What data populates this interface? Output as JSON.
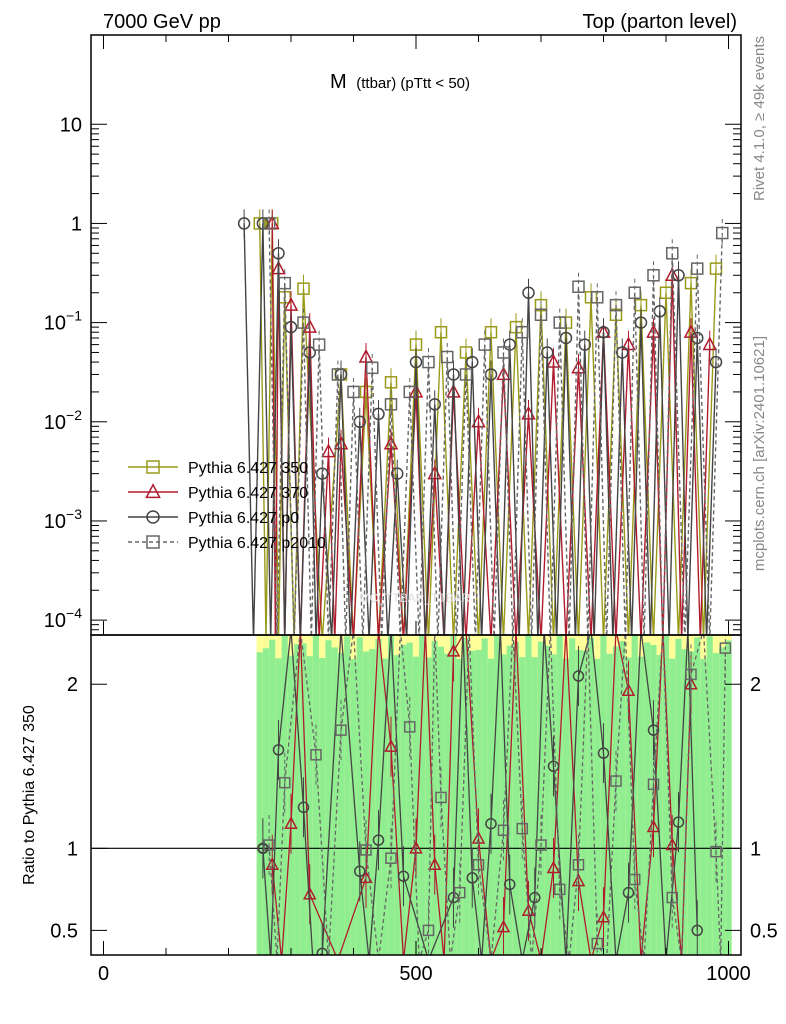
{
  "header": {
    "left": "7000 GeV pp",
    "right": "Top (parton level)"
  },
  "side_text": {
    "rivet": "Rivet 4.1.0, ≥ 49k events",
    "site": "mcplots.cern.ch [arXiv:2401.10621]"
  },
  "title": {
    "main": "M",
    "sub": "(ttbar) (pTtt < 50)"
  },
  "ratio_ylabel": "Ratio to Pythia 6.427 350",
  "watermark": "MC_TTBAR_TTBAR",
  "colors": {
    "y350": "#9a9a1a",
    "r370": "#b01c2e",
    "p0": "#444444",
    "p2010": "#666666",
    "band_green": "#90ee90",
    "band_yellow": "#ffff99"
  },
  "chart_data": {
    "type": "line",
    "xlabel": "",
    "xlim": [
      -20,
      1020
    ],
    "main_ylim_log10": [
      -4.15,
      1.9
    ],
    "ratio_ylim": [
      0.35,
      2.3
    ],
    "x_ticks": [
      "0",
      "500",
      "1000"
    ],
    "x_tick_values": [
      0,
      500,
      1000
    ],
    "main_y_ticks": [
      {
        "base": "10",
        "exp": "",
        "v": 1,
        "label": "10"
      },
      {
        "base": "1",
        "exp": "",
        "v": 0,
        "label": "1"
      },
      {
        "base": "10",
        "exp": "−1",
        "v": -1,
        "label": "10"
      },
      {
        "base": "10",
        "exp": "−2",
        "v": -2,
        "label": "10"
      },
      {
        "base": "10",
        "exp": "−3",
        "v": -3,
        "label": "10"
      },
      {
        "base": "10",
        "exp": "−4",
        "v": -4,
        "label": "10"
      }
    ],
    "ratio_y_ticks": [
      "2",
      "1",
      "0.5"
    ],
    "ratio_y_values": [
      2,
      1,
      0.5
    ],
    "legend": [
      {
        "label": "Pythia 6.427 350",
        "marker": "square",
        "style": "solid"
      },
      {
        "label": "Pythia 6.427 370",
        "marker": "triangle",
        "style": "solid"
      },
      {
        "label": "Pythia 6.427 p0",
        "marker": "circle",
        "style": "solid"
      },
      {
        "label": "Pythia 6.427 p2010",
        "marker": "square",
        "style": "dashed"
      }
    ],
    "series": [
      {
        "name": "Pythia 6.427 350",
        "x": [
          250,
          270,
          290,
          320,
          380,
          420,
          460,
          500,
          540,
          580,
          620,
          660,
          700,
          740,
          780,
          820,
          860,
          900,
          940,
          980
        ],
        "values": [
          1.0,
          1.0,
          0.18,
          0.22,
          0.03,
          0.02,
          0.025,
          0.06,
          0.08,
          0.05,
          0.08,
          0.09,
          0.15,
          0.1,
          0.18,
          0.12,
          0.15,
          0.2,
          0.25,
          0.35
        ]
      },
      {
        "name": "Pythia 6.427 370",
        "x": [
          270,
          280,
          300,
          330,
          360,
          380,
          420,
          460,
          500,
          530,
          560,
          600,
          640,
          680,
          720,
          760,
          800,
          840,
          880,
          910,
          940,
          970
        ],
        "values": [
          1.0,
          0.35,
          0.15,
          0.09,
          0.005,
          0.006,
          0.045,
          0.006,
          0.02,
          0.003,
          0.02,
          0.01,
          0.03,
          0.012,
          0.04,
          0.035,
          0.08,
          0.06,
          0.08,
          0.3,
          0.08,
          0.06
        ]
      },
      {
        "name": "Pythia 6.427 p0",
        "x": [
          225,
          255,
          280,
          300,
          330,
          350,
          380,
          410,
          440,
          470,
          500,
          530,
          560,
          590,
          620,
          650,
          680,
          710,
          740,
          770,
          800,
          830,
          860,
          890,
          920,
          950,
          980
        ],
        "values": [
          1.0,
          1.0,
          0.5,
          0.09,
          0.05,
          0.003,
          0.03,
          0.01,
          0.012,
          0.003,
          0.04,
          0.015,
          0.03,
          0.04,
          0.03,
          0.06,
          0.2,
          0.05,
          0.07,
          0.06,
          0.08,
          0.05,
          0.1,
          0.13,
          0.3,
          0.07,
          0.04
        ]
      },
      {
        "name": "Pythia 6.427 p2010",
        "x": [
          265,
          290,
          320,
          345,
          375,
          400,
          430,
          460,
          490,
          520,
          550,
          580,
          610,
          640,
          670,
          700,
          730,
          760,
          790,
          820,
          850,
          880,
          910,
          950,
          990
        ],
        "values": [
          1.0,
          0.25,
          0.1,
          0.06,
          0.03,
          0.02,
          0.035,
          0.015,
          0.02,
          0.04,
          0.045,
          0.03,
          0.06,
          0.05,
          0.08,
          0.12,
          0.1,
          0.23,
          0.18,
          0.15,
          0.2,
          0.3,
          0.5,
          0.35,
          0.8
        ]
      }
    ],
    "ratio_series": [
      {
        "name": "Pythia 6.427 370",
        "x": [
          270,
          300,
          330,
          420,
          460,
          500,
          530,
          560,
          600,
          640,
          680,
          720,
          760,
          800,
          840,
          880,
          910,
          940
        ],
        "values": [
          0.9,
          1.15,
          0.72,
          0.82,
          1.62,
          1.0,
          0.9,
          2.2,
          1.06,
          0.52,
          0.62,
          0.88,
          0.8,
          0.58,
          1.96,
          1.13,
          1.02,
          2.0
        ]
      },
      {
        "name": "Pythia 6.427 p0",
        "x": [
          255,
          280,
          320,
          350,
          410,
          440,
          480,
          560,
          590,
          620,
          650,
          690,
          720,
          760,
          800,
          840,
          880,
          920,
          950
        ],
        "values": [
          1.0,
          1.6,
          1.25,
          0.36,
          0.86,
          1.05,
          0.83,
          0.7,
          0.82,
          1.15,
          0.78,
          0.7,
          1.5,
          2.05,
          1.58,
          0.73,
          1.72,
          1.16,
          0.5
        ]
      },
      {
        "name": "Pythia 6.427 p2010",
        "x": [
          265,
          290,
          340,
          380,
          420,
          460,
          490,
          520,
          540,
          570,
          600,
          640,
          670,
          700,
          730,
          760,
          790,
          820,
          850,
          880,
          910,
          940,
          980,
          995
        ],
        "values": [
          1.02,
          1.4,
          1.57,
          1.72,
          0.99,
          0.94,
          1.74,
          0.5,
          1.31,
          0.73,
          0.9,
          1.11,
          1.12,
          1.02,
          0.75,
          0.9,
          0.42,
          1.41,
          0.81,
          1.39,
          0.7,
          2.06,
          0.98,
          2.22
        ]
      }
    ]
  }
}
